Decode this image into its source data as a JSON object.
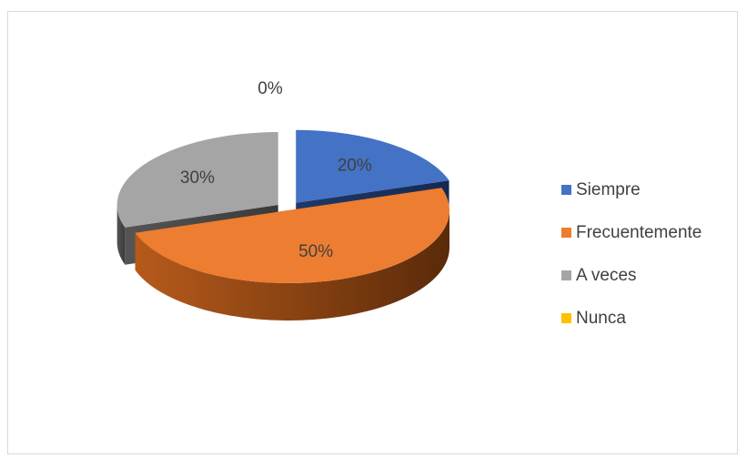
{
  "chart_data": {
    "type": "pie",
    "style": "3d-exploded",
    "categories": [
      "Siempre",
      "Frecuentemente",
      "A veces",
      "Nunca"
    ],
    "values": [
      20,
      50,
      30,
      0
    ],
    "labels": [
      "20%",
      "50%",
      "30%",
      "0%"
    ],
    "colors": [
      "#4472c4",
      "#ed7d31",
      "#a5a5a5",
      "#ffc000"
    ],
    "legend_position": "right",
    "title": ""
  }
}
